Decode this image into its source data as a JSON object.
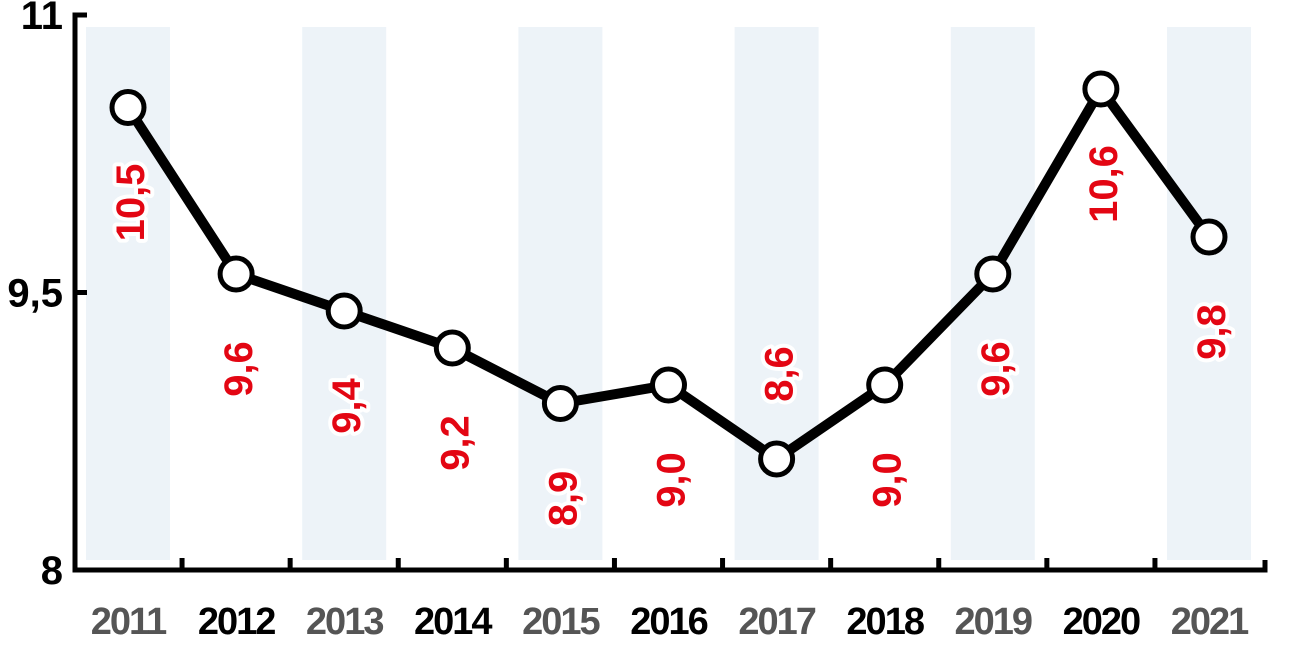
{
  "chart_data": {
    "type": "line",
    "categories": [
      "2011",
      "2012",
      "2013",
      "2014",
      "2015",
      "2016",
      "2017",
      "2018",
      "2019",
      "2020",
      "2021"
    ],
    "values": [
      10.5,
      9.6,
      9.4,
      9.2,
      8.9,
      9.0,
      8.6,
      9.0,
      9.6,
      10.6,
      9.8
    ],
    "data_labels": [
      "10,5",
      "9,6",
      "9,4",
      "9,2",
      "8,9",
      "9,0",
      "8,6",
      "9,0",
      "9,6",
      "10,6",
      "9,8"
    ],
    "title": "",
    "xlabel": "",
    "ylabel": "",
    "ylim": [
      8,
      11
    ],
    "yticks": [
      8,
      9.5,
      11
    ],
    "ytick_labels": [
      "8",
      "9,5",
      "11"
    ],
    "grid": false,
    "legend": "none",
    "colors": {
      "line": "#000000",
      "marker_fill": "#ffffff",
      "data_label": "#e30613",
      "band": "#edf3f8",
      "year_odd": "#555555",
      "year_even": "#000000"
    }
  }
}
